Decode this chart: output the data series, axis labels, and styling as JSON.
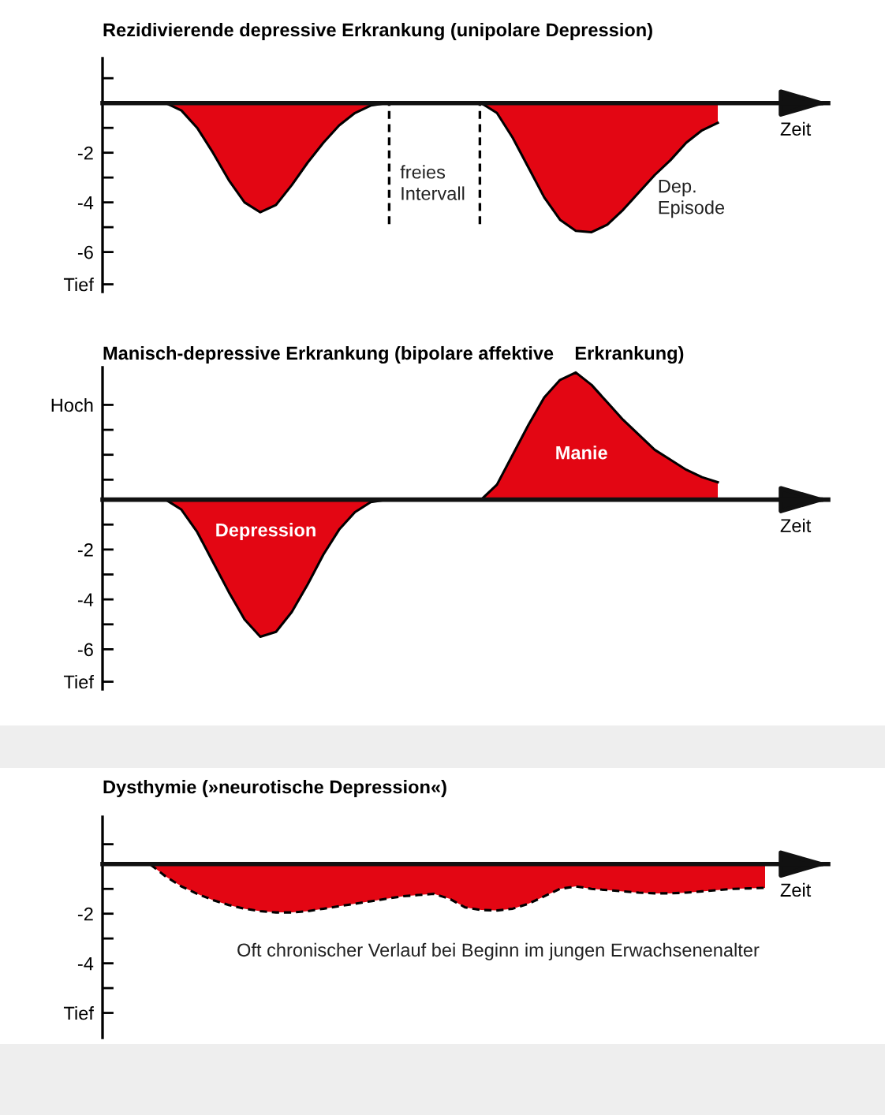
{
  "chart_data": [
    {
      "type": "area",
      "title": "Rezidivierende depressive Erkrankung (unipolare Depression)",
      "xlabel": "Zeit",
      "line_style": "solid",
      "tick_labels": "y",
      "categories": [
        null,
        null,
        null,
        null,
        null,
        null,
        null,
        null,
        null,
        null,
        null,
        null,
        null,
        null,
        null,
        null,
        null,
        null,
        null,
        null,
        null,
        null,
        null,
        null,
        null,
        null,
        null,
        null,
        null,
        null,
        null,
        null,
        null,
        null,
        null,
        null,
        null,
        null,
        null,
        null
      ],
      "series": [
        {
          "color": "#e30613",
          "values": [
            0,
            0,
            0,
            0,
            0,
            -0.3,
            -1.0,
            -2.0,
            -3.1,
            -4.0,
            -4.4,
            -4.1,
            -3.3,
            -2.4,
            -1.6,
            -0.9,
            -0.4,
            -0.1,
            0,
            0,
            0,
            0,
            0,
            0,
            0,
            -0.4,
            -1.4,
            -2.6,
            -3.8,
            -4.7,
            -5.15,
            -5.2,
            -4.9,
            -4.3,
            -3.6,
            -2.9,
            -2.3,
            -1.6,
            -1.1,
            -0.8
          ]
        }
      ],
      "ylim": [
        -7.6,
        1.8
      ],
      "yticks": [
        {
          "value": 1,
          "label": null
        },
        {
          "value": -1,
          "label": null
        },
        -2,
        {
          "value": -3,
          "label": null
        },
        -4,
        {
          "value": -5,
          "label": null
        },
        -6,
        {
          "value": -7.3,
          "label": "Tief"
        }
      ],
      "annotations": [
        "freies\nIntervall",
        "Dep.\nEpisode"
      ]
    },
    {
      "type": "area",
      "title": "Manisch-depressive Erkrankung (bipolare affektive    Erkrankung)",
      "xlabel": "Zeit",
      "line_style": "solid",
      "tick_labels": "y",
      "categories": [
        null,
        null,
        null,
        null,
        null,
        null,
        null,
        null,
        null,
        null,
        null,
        null,
        null,
        null,
        null,
        null,
        null,
        null,
        null,
        null,
        null,
        null,
        null,
        null,
        null,
        null,
        null,
        null,
        null,
        null,
        null,
        null,
        null,
        null,
        null,
        null,
        null,
        null,
        null,
        null
      ],
      "series": [
        {
          "color": "#e30613",
          "values": [
            0,
            0,
            0,
            0,
            0,
            -0.4,
            -1.3,
            -2.5,
            -3.7,
            -4.8,
            -5.5,
            -5.3,
            -4.5,
            -3.4,
            -2.2,
            -1.2,
            -0.5,
            -0.1,
            0,
            0,
            0,
            0,
            0,
            0,
            0,
            0.6,
            1.8,
            3.0,
            4.1,
            4.8,
            5.1,
            4.6,
            3.9,
            3.2,
            2.6,
            2.0,
            1.6,
            1.2,
            0.9,
            0.7
          ]
        }
      ],
      "ylim": [
        -7.6,
        5.3
      ],
      "yticks": [
        {
          "value": 3.8,
          "label": "Hoch"
        },
        {
          "value": 2.8,
          "label": null
        },
        {
          "value": 1.8,
          "label": null
        },
        {
          "value": 0.8,
          "label": null
        },
        {
          "value": -1,
          "label": null
        },
        -2,
        {
          "value": -3,
          "label": null
        },
        -4,
        {
          "value": -5,
          "label": null
        },
        -6,
        {
          "value": -7.3,
          "label": "Tief"
        }
      ],
      "annotations": [
        "Depression",
        "Manie"
      ]
    },
    {
      "type": "area",
      "title": "Dysthymie (»neurotische Depression«)",
      "xlabel": "Zeit",
      "line_style": "dashed",
      "tick_labels": "y",
      "categories": [
        null,
        null,
        null,
        null,
        null,
        null,
        null,
        null,
        null,
        null,
        null,
        null,
        null,
        null,
        null,
        null,
        null,
        null,
        null,
        null,
        null,
        null,
        null,
        null,
        null,
        null,
        null,
        null,
        null,
        null,
        null,
        null,
        null,
        null,
        null,
        null,
        null,
        null,
        null,
        null,
        null,
        null,
        null
      ],
      "series": [
        {
          "color": "#e30613",
          "values": [
            0,
            0,
            0,
            0,
            -0.5,
            -0.9,
            -1.2,
            -1.45,
            -1.65,
            -1.8,
            -1.9,
            -1.95,
            -1.95,
            -1.9,
            -1.8,
            -1.7,
            -1.6,
            -1.5,
            -1.4,
            -1.3,
            -1.25,
            -1.2,
            -1.4,
            -1.75,
            -1.85,
            -1.87,
            -1.8,
            -1.6,
            -1.3,
            -1.0,
            -0.9,
            -1.0,
            -1.05,
            -1.1,
            -1.15,
            -1.18,
            -1.18,
            -1.15,
            -1.1,
            -1.05,
            -1.0,
            -0.98,
            -0.96
          ]
        }
      ],
      "ylim": [
        -7.0,
        1.9
      ],
      "yticks": [
        {
          "value": 0.8,
          "label": null
        },
        {
          "value": -1,
          "label": null
        },
        -2,
        {
          "value": -3,
          "label": null
        },
        -4,
        {
          "value": -5,
          "label": null
        },
        {
          "value": -6,
          "label": "Tief"
        }
      ],
      "annotations": [
        "Oft chronischer Verlauf bei Beginn im jungen Erwachsenenalter"
      ]
    }
  ]
}
